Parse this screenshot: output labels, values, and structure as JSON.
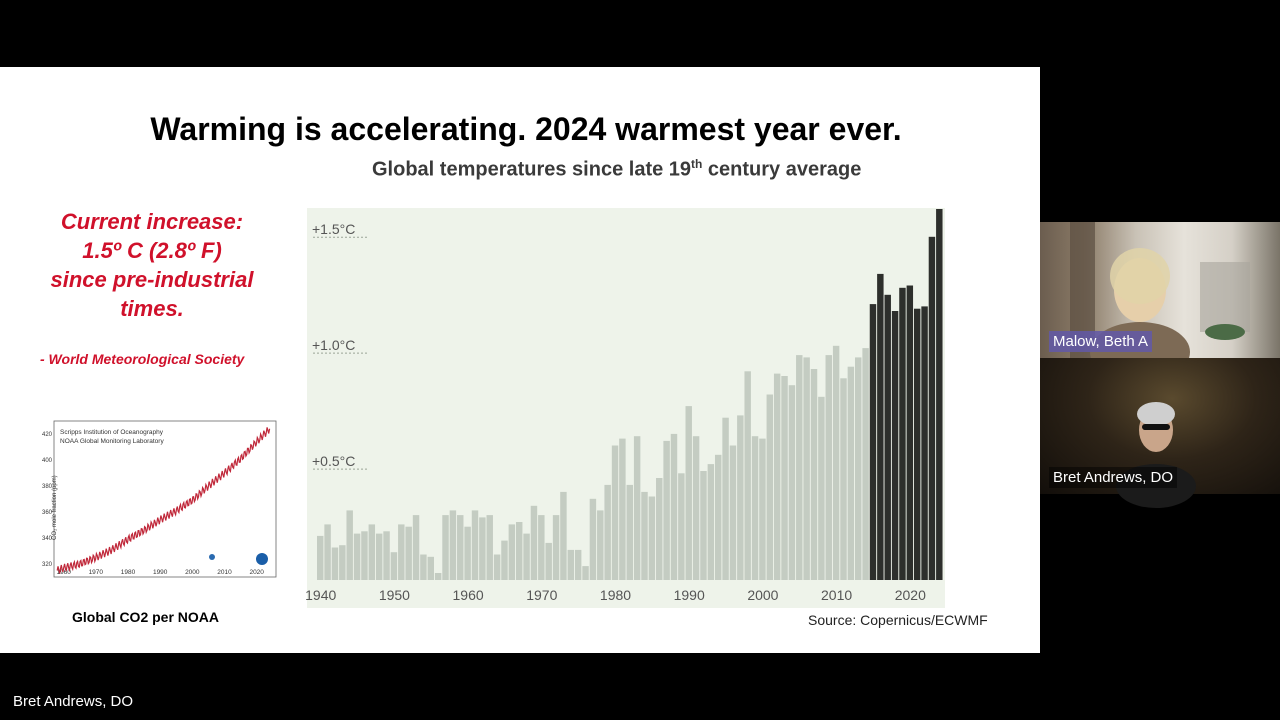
{
  "slide": {
    "title": "Warming is accelerating.  2024 warmest year ever.",
    "subtitle_pre": "Global temperatures since late 19",
    "subtitle_sup": "th",
    "subtitle_post": " century average",
    "quote": {
      "line1": "Current  increase:",
      "line2": "1.5º C (2.8º F)",
      "line3": "since pre-industrial",
      "line4": "times.",
      "source": "- World Meteorological Society"
    },
    "co2_caption": "Global CO2 per NOAA",
    "source": "Source: Copernicus/ECWMF"
  },
  "colors": {
    "past_bar": "#c4ccc2",
    "recent_bar": "#2d2f2c",
    "chart_bg": "#eef3ea",
    "quote_red": "#d0112b",
    "co2_line": "#c0283a"
  },
  "chart_data": [
    {
      "type": "bar",
      "title": "Global temperatures since late 19th century average",
      "x": [
        1940,
        1941,
        1942,
        1943,
        1944,
        1945,
        1946,
        1947,
        1948,
        1949,
        1950,
        1951,
        1952,
        1953,
        1954,
        1955,
        1956,
        1957,
        1958,
        1959,
        1960,
        1961,
        1962,
        1963,
        1964,
        1965,
        1966,
        1967,
        1968,
        1969,
        1970,
        1971,
        1972,
        1973,
        1974,
        1975,
        1976,
        1977,
        1978,
        1979,
        1980,
        1981,
        1982,
        1983,
        1984,
        1985,
        1986,
        1987,
        1988,
        1989,
        1990,
        1991,
        1992,
        1993,
        1994,
        1995,
        1996,
        1997,
        1998,
        1999,
        2000,
        2001,
        2002,
        2003,
        2004,
        2005,
        2006,
        2007,
        2008,
        2009,
        2010,
        2011,
        2012,
        2013,
        2014,
        2015,
        2016,
        2017,
        2018,
        2019,
        2020,
        2021,
        2022,
        2023,
        2024
      ],
      "values": [
        0.19,
        0.24,
        0.14,
        0.15,
        0.3,
        0.2,
        0.21,
        0.24,
        0.2,
        0.21,
        0.12,
        0.24,
        0.23,
        0.28,
        0.11,
        0.1,
        0.03,
        0.28,
        0.3,
        0.28,
        0.23,
        0.3,
        0.27,
        0.28,
        0.11,
        0.17,
        0.24,
        0.25,
        0.2,
        0.32,
        0.28,
        0.16,
        0.28,
        0.38,
        0.13,
        0.13,
        0.06,
        0.35,
        0.3,
        0.41,
        0.58,
        0.61,
        0.41,
        0.62,
        0.38,
        0.36,
        0.44,
        0.6,
        0.63,
        0.46,
        0.75,
        0.62,
        0.47,
        0.5,
        0.54,
        0.7,
        0.58,
        0.71,
        0.9,
        0.62,
        0.61,
        0.8,
        0.89,
        0.88,
        0.84,
        0.97,
        0.96,
        0.91,
        0.79,
        0.97,
        1.01,
        0.87,
        0.92,
        0.96,
        1.0,
        1.19,
        1.32,
        1.23,
        1.16,
        1.26,
        1.27,
        1.17,
        1.18,
        1.48,
        1.6
      ],
      "highlight_from": 2015,
      "yticks": [
        "+0.5°C",
        "+1.0°C",
        "+1.5°C"
      ],
      "ytick_values": [
        0.5,
        1.0,
        1.5
      ],
      "xticks": [
        1940,
        1950,
        1960,
        1970,
        1980,
        1990,
        2000,
        2010,
        2020
      ],
      "ylim": [
        0,
        1.6
      ],
      "grid": false,
      "legend": "none"
    },
    {
      "type": "line",
      "annotation": [
        "Scripps Institution of Oceanography",
        "NOAA Global Monitoring Laboratory"
      ],
      "ylabel": "CO₂ mole fraction (ppm)",
      "xticks": [
        1960,
        1970,
        1980,
        1990,
        2000,
        2010,
        2020
      ],
      "yticks": [
        320,
        340,
        360,
        380,
        400,
        420
      ],
      "xlim": [
        1957,
        2026
      ],
      "ylim": [
        310,
        430
      ],
      "x": [
        1958,
        1960,
        1965,
        1970,
        1975,
        1980,
        1985,
        1990,
        1995,
        2000,
        2005,
        2010,
        2015,
        2020,
        2024
      ],
      "values": [
        315,
        317,
        320,
        325,
        331,
        339,
        346,
        354,
        361,
        369,
        380,
        390,
        401,
        414,
        424
      ]
    }
  ],
  "participants": {
    "tile1_name": "Malow, Beth A",
    "tile2_name": "Bret Andrews, DO",
    "active_speaker": "Bret Andrews, DO"
  }
}
